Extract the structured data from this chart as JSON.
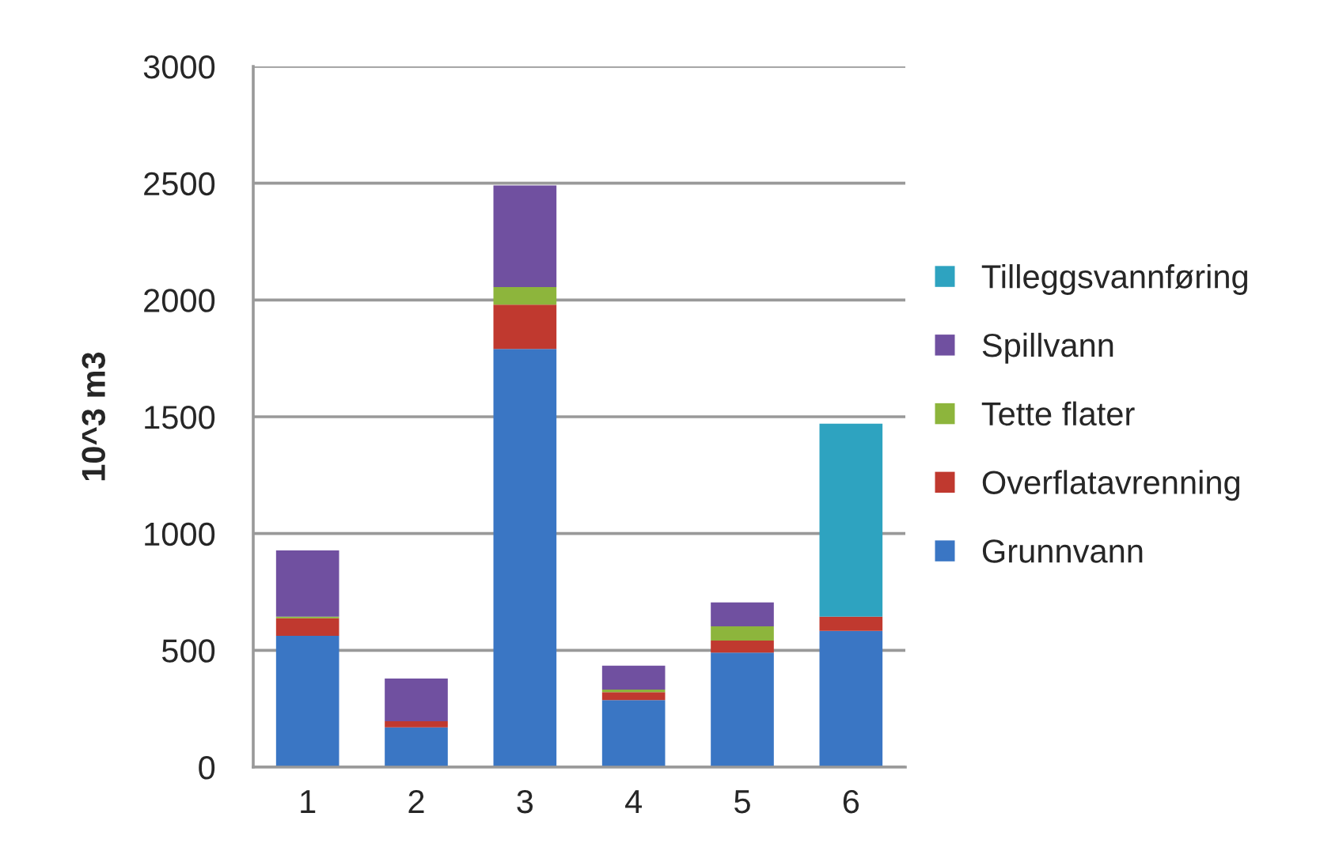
{
  "chart_data": {
    "type": "bar",
    "stacked": true,
    "ylabel": "10^3 m3",
    "categories": [
      "1",
      "2",
      "3",
      "4",
      "5",
      "6"
    ],
    "series": [
      {
        "name": "Grunnvann",
        "color": "#3a76c4",
        "values": [
          562,
          170,
          1790,
          287,
          490,
          583
        ]
      },
      {
        "name": "Overflatavrenning",
        "color": "#c0392f",
        "values": [
          75,
          26,
          190,
          34,
          52,
          61
        ]
      },
      {
        "name": "Tette flater",
        "color": "#8db53c",
        "values": [
          7,
          null,
          75,
          11,
          61,
          null
        ]
      },
      {
        "name": "Spillvann",
        "color": "#7050a0",
        "values": [
          284,
          183,
          435,
          102,
          102,
          null
        ]
      },
      {
        "name": "Tilleggsvannføring",
        "color": "#2ea3c0",
        "values": [
          null,
          null,
          null,
          null,
          null,
          826
        ]
      }
    ],
    "ylim": [
      0,
      3000
    ],
    "yticks": [
      0,
      500,
      1000,
      1500,
      2000,
      2500,
      3000
    ],
    "grid": "y",
    "legend": "right"
  }
}
